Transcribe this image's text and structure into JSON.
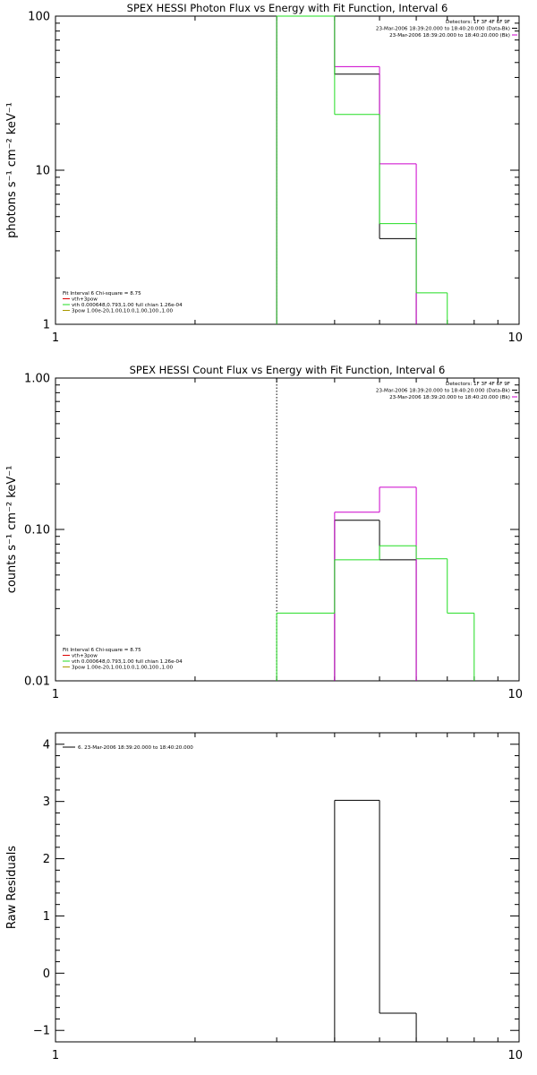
{
  "colors": {
    "axis": "#000000",
    "black": "#000000",
    "magenta": "#cc00cc",
    "green": "#22dd22",
    "red": "#dd0000",
    "olive": "#aa9900"
  },
  "chart_data": [
    {
      "type": "line",
      "title": "SPEX HESSI Photon Flux vs Energy with Fit Function, Interval 6",
      "ylabel": "photons s⁻¹ cm⁻² keV⁻¹",
      "xlabel": "",
      "xscale": "log",
      "yscale": "log",
      "xlim": [
        1,
        10
      ],
      "ylim": [
        1,
        100
      ],
      "xticks": [
        "1",
        "10"
      ],
      "yticks": [
        "1",
        "10",
        "100"
      ],
      "grid": false,
      "vline_x": 3.0,
      "legend_right": [
        "Detectors: 1F 3F 4F 6F 9F",
        "23-Mar-2006 18:39:20.000 to 18:40:20.000 (Data-Bk)",
        "23-Mar-2006 18:39:20.000 to 18:40:20.000 (Bk)"
      ],
      "legend_left": [
        "Fit Interval  6    Chi-square = 8.75",
        "vth+3pow",
        "vth 0.000648,0.793,1.00  full chian 1.26e-04",
        "3pow 1.00e-20,1.00,10.0,1.00,100.,1.00"
      ],
      "series": [
        {
          "color_key": "black",
          "edges": [
            3,
            4,
            5,
            6
          ],
          "values": [
            100,
            42,
            3.6
          ]
        },
        {
          "color_key": "magenta",
          "edges": [
            3,
            4,
            5,
            6
          ],
          "values": [
            100,
            47,
            11
          ]
        },
        {
          "color_key": "green",
          "edges": [
            3,
            4,
            5,
            6,
            7
          ],
          "values": [
            100,
            23,
            4.5,
            1.6
          ]
        }
      ]
    },
    {
      "type": "line",
      "title": "SPEX HESSI Count Flux vs Energy with Fit Function, Interval 6",
      "ylabel": "counts s⁻¹ cm⁻² keV⁻¹",
      "xlabel": "",
      "xscale": "log",
      "yscale": "log",
      "xlim": [
        1,
        10
      ],
      "ylim": [
        0.01,
        1.0
      ],
      "xticks": [
        "1",
        "10"
      ],
      "yticks": [
        "0.01",
        "0.10",
        "1.00"
      ],
      "grid": false,
      "vline_x": 3.0,
      "legend_right": [
        "Detectors: 1F 3F 4F 6F 9F",
        "23-Mar-2006 18:39:20.000 to 18:40:20.000 (Data-Bk)",
        "23-Mar-2006 18:39:20.000 to 18:40:20.000 (Bk)"
      ],
      "legend_left": [
        "Fit Interval  6    Chi-square = 8.75",
        "vth+3pow",
        "vth 0.000648,0.793,1.00  full chian 1.26e-04",
        "3pow 1.00e-20,1.00,10.0,1.00,100.,1.00"
      ],
      "series": [
        {
          "color_key": "black",
          "edges": [
            4,
            5,
            6
          ],
          "values": [
            0.115,
            0.063
          ]
        },
        {
          "color_key": "magenta",
          "edges": [
            4,
            5,
            6
          ],
          "values": [
            0.13,
            0.19
          ]
        },
        {
          "color_key": "green",
          "edges": [
            3,
            4,
            5,
            6,
            7,
            8
          ],
          "values": [
            0.028,
            0.063,
            0.078,
            0.064,
            0.028
          ]
        }
      ]
    },
    {
      "type": "line",
      "title": "",
      "ylabel": "Raw Residuals",
      "xlabel": "",
      "xscale": "log",
      "yscale": "linear",
      "xlim": [
        1,
        10
      ],
      "ylim": [
        -1.2,
        4.2
      ],
      "xticks": [
        "1",
        "10"
      ],
      "yticks": [
        "−1",
        "0",
        "1",
        "2",
        "3",
        "4"
      ],
      "grid": false,
      "legend_right": [],
      "legend_left": [
        "6. 23-Mar-2006 18:39:20.000 to 18:40:20.000"
      ],
      "series": [
        {
          "color_key": "black",
          "edges": [
            4,
            5,
            6
          ],
          "values": [
            3.02,
            -0.7
          ]
        }
      ]
    }
  ]
}
